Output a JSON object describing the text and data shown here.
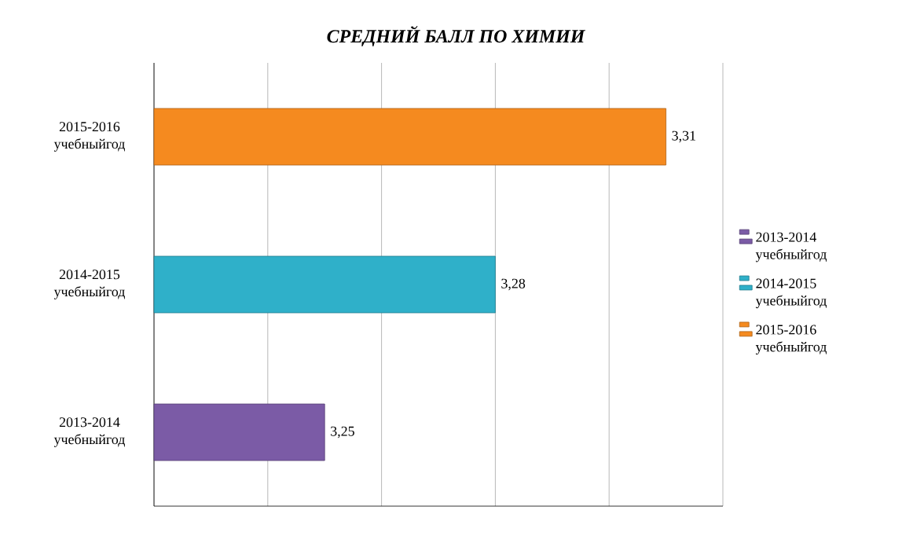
{
  "chart_data": {
    "type": "bar",
    "orientation": "horizontal",
    "stacked": true,
    "title": "СРЕДНИЙ БАЛЛ ПО ХИМИИ",
    "categories": [
      "2015-2016 учебныйгод",
      "2014-2015 учебныйгод",
      "2013-2014 учебныйгод"
    ],
    "series": [
      {
        "name": "2013-2014 учебныйгод",
        "color": "#7b5ba6",
        "values": [
          null,
          null,
          3.25
        ],
        "value_labels": [
          null,
          null,
          "3,25"
        ]
      },
      {
        "name": "2014-2015 учебныйгод",
        "color": "#2fb0c9",
        "values": [
          null,
          3.28,
          null
        ],
        "value_labels": [
          null,
          "3,28",
          null
        ]
      },
      {
        "name": "2015-2016 учебныйгод",
        "color": "#f58a1f",
        "values": [
          3.31,
          null,
          null
        ],
        "value_labels": [
          "3,31",
          null,
          null
        ]
      }
    ],
    "xlim": [
      3.22,
      3.32
    ],
    "xticks": [
      {
        "value": 3.22,
        "label": null
      },
      {
        "value": 3.24,
        "label": null
      },
      {
        "value": 3.26,
        "label": null
      },
      {
        "value": 3.28,
        "label": null
      },
      {
        "value": 3.3,
        "label": null
      },
      {
        "value": 3.32,
        "label": null
      }
    ],
    "tick_labels": "y",
    "grid": "x",
    "legend": "right"
  }
}
